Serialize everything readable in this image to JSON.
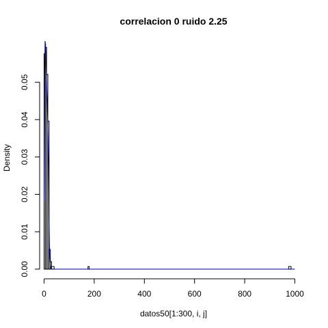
{
  "chart_data": {
    "type": "bar",
    "title": "correlacion 0 ruido 2.25",
    "xlabel": "datos50[1:300, i, j]",
    "ylabel": "Density",
    "xlim": [
      0,
      1000
    ],
    "ylim": [
      0,
      0.06
    ],
    "x_ticks": [
      0,
      200,
      400,
      600,
      800,
      1000
    ],
    "y_ticks": [
      0.0,
      0.01,
      0.02,
      0.03,
      0.04,
      0.05
    ],
    "y_tick_labels": [
      "0.00",
      "0.01",
      "0.02",
      "0.03",
      "0.04",
      "0.05"
    ],
    "bin_width": 5,
    "bins": [
      {
        "x0": 0,
        "x1": 5,
        "density": 0.0576
      },
      {
        "x0": 5,
        "x1": 10,
        "density": 0.0593
      },
      {
        "x0": 10,
        "x1": 15,
        "density": 0.0521
      },
      {
        "x0": 15,
        "x1": 20,
        "density": 0.0396
      },
      {
        "x0": 20,
        "x1": 25,
        "density": 0.0053
      },
      {
        "x0": 25,
        "x1": 30,
        "density": 0.002
      },
      {
        "x0": 30,
        "x1": 40,
        "density": 0.0007
      },
      {
        "x0": 175,
        "x1": 180,
        "density": 0.0007
      },
      {
        "x0": 975,
        "x1": 985,
        "density": 0.0007
      }
    ],
    "density_curve": {
      "color": "#00008b",
      "x": [
        0,
        2,
        4,
        6,
        8,
        10,
        12,
        14,
        16,
        18,
        20,
        22,
        25,
        30,
        40,
        100,
        200,
        400,
        600,
        800,
        1000
      ],
      "y": [
        0.018,
        0.052,
        0.061,
        0.06,
        0.055,
        0.05,
        0.046,
        0.041,
        0.035,
        0.028,
        0.014,
        0.004,
        0.001,
        0.0,
        0.0,
        0.0,
        0.0,
        0.0,
        0.0,
        0.0,
        0.0
      ]
    }
  }
}
